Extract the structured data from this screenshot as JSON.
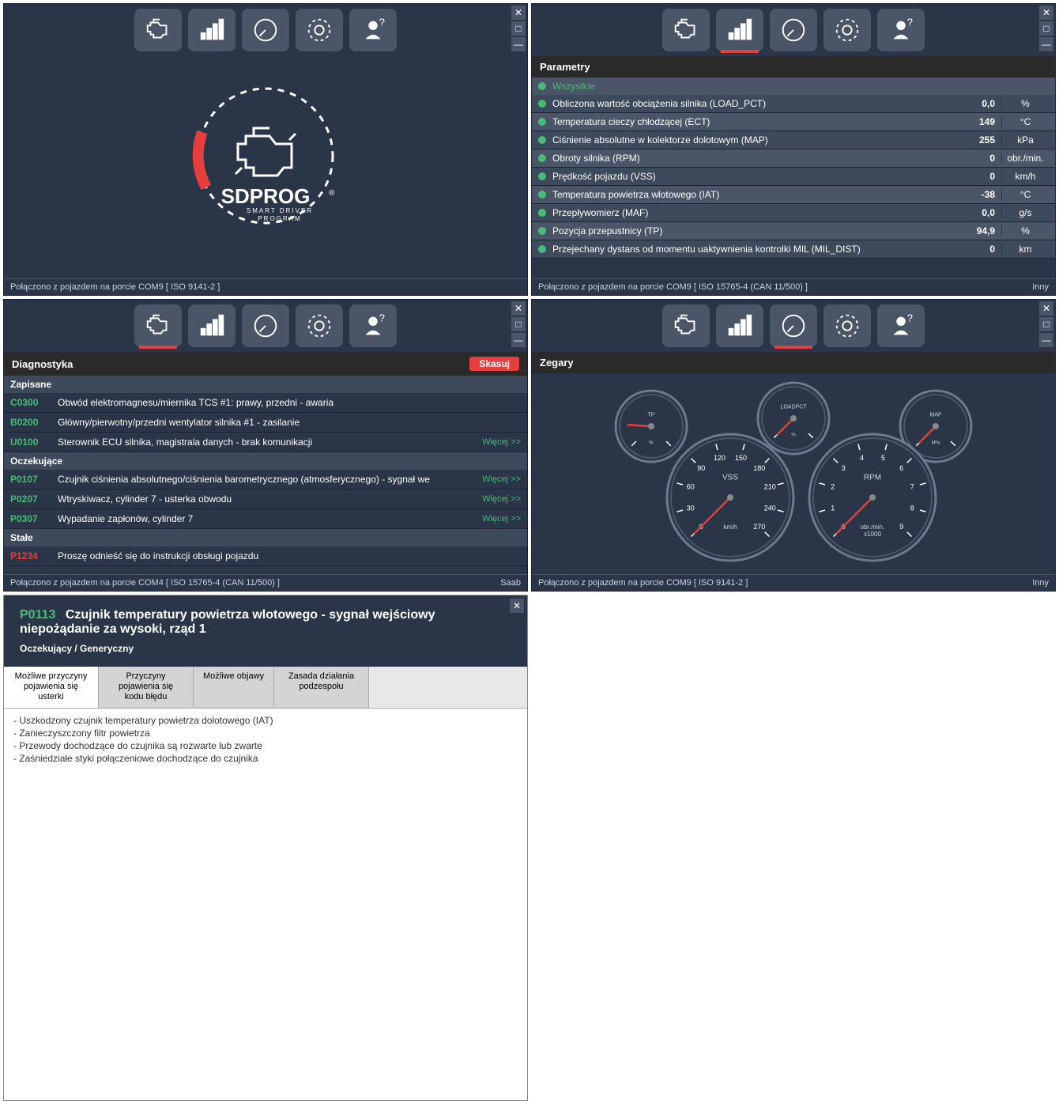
{
  "windows": {
    "home": {
      "status_left": "Połączono z pojazdem na porcie COM9  [ ISO 9141-2 ]",
      "status_right": "",
      "logo_title": "SDPROG",
      "logo_sub": "SMART DRIVER PROGRAM",
      "logo_color_accent": "#e53e3e",
      "logo_color_fg": "#ffffff"
    },
    "params": {
      "header": "Parametry",
      "all_label": "Wszystkie",
      "rows": [
        {
          "name": "Obliczona wartość obciążenia silnika (LOAD_PCT)",
          "val": "0,0",
          "unit": "%"
        },
        {
          "name": "Temperatura cieczy chłodzącej (ECT)",
          "val": "149",
          "unit": "°C"
        },
        {
          "name": "Ciśnienie absolutne w kolektorze dolotowym (MAP)",
          "val": "255",
          "unit": "kPa"
        },
        {
          "name": "Obroty silnika (RPM)",
          "val": "0",
          "unit": "obr./min."
        },
        {
          "name": "Prędkość pojazdu (VSS)",
          "val": "0",
          "unit": "km/h"
        },
        {
          "name": "Temperatura powietrza wlotowego (IAT)",
          "val": "-38",
          "unit": "°C"
        },
        {
          "name": "Przepływomierz (MAF)",
          "val": "0,0",
          "unit": "g/s"
        },
        {
          "name": "Pozycja przepustnicy (TP)",
          "val": "94,9",
          "unit": "%"
        },
        {
          "name": "Przejechany dystans od momentu uaktywnienia kontrolki MIL (MIL_DIST)",
          "val": "0",
          "unit": "km"
        }
      ],
      "status_left": "Połączono z pojazdem na porcie COM9  [ ISO 15765-4 (CAN 11/500) ]",
      "status_right": "Inny"
    },
    "diag": {
      "header": "Diagnostyka",
      "scan_btn": "Skasuj",
      "cat_saved": "Zapisane",
      "cat_pending": "Oczekujące",
      "cat_const": "Stałe",
      "more": "Więcej >>",
      "saved": [
        {
          "code": "C0300",
          "desc": "Obwód elektromagnesu/miernika TCS #1: prawy, przedni - awaria",
          "more": false,
          "err": false
        },
        {
          "code": "B0200",
          "desc": "Główny/pierwotny/przedni wentylator silnika #1 - zasilanie",
          "more": false,
          "err": false
        },
        {
          "code": "U0100",
          "desc": "Sterownik ECU silnika, magistrala danych - brak komunikacji",
          "more": true,
          "err": false
        }
      ],
      "pending": [
        {
          "code": "P0107",
          "desc": "Czujnik ciśnienia absolutnego/ciśnienia barometrycznego (atmosferycznego) - sygnał we",
          "more": true,
          "err": false
        },
        {
          "code": "P0207",
          "desc": "Wtryskiwacz, cylinder 7 - usterka obwodu",
          "more": true,
          "err": false
        },
        {
          "code": "P0307",
          "desc": "Wypadanie zapłonów, cylinder 7",
          "more": true,
          "err": false
        }
      ],
      "constv": [
        {
          "code": "P1234",
          "desc": "Proszę odnieść się do instrukcji obsługi pojazdu",
          "more": false,
          "err": true
        }
      ],
      "status_left": "Połączono z pojazdem na porcie COM4  [ ISO 15765-4 (CAN 11/500) ]",
      "status_right": "Saab"
    },
    "gauges": {
      "header": "Zegary",
      "status_left": "Połączono z pojazdem na porcie COM9  [ ISO 9141-2 ]",
      "status_right": "Inny",
      "items": [
        {
          "label": "TP",
          "unit": "%",
          "min": 0,
          "max": 100,
          "value": 18,
          "size": "small"
        },
        {
          "label": "LOADPCT",
          "unit": "%",
          "min": 0,
          "max": 100,
          "value": 0,
          "size": "small"
        },
        {
          "label": "MAP",
          "unit": "kPa",
          "min": 0,
          "max": 255,
          "value": 0,
          "size": "small"
        },
        {
          "label": "VSS",
          "unit": "km/h",
          "min": 0,
          "max": 270,
          "value": 0,
          "size": "large",
          "ticks": [
            0,
            30,
            60,
            90,
            120,
            150,
            180,
            210,
            240,
            270
          ]
        },
        {
          "label": "RPM",
          "unit": "obr./min.\nx1000",
          "min": 0,
          "max": 9,
          "value": 0,
          "size": "large",
          "ticks": [
            0,
            1,
            2,
            3,
            4,
            5,
            6,
            7,
            8,
            9
          ]
        }
      ],
      "needle_color": "#e53e3e",
      "dial_bg": "#2a3547",
      "dial_ring": "#cbd5e0",
      "tick_color": "#ffffff",
      "label_color": "#cbd5e0"
    },
    "detail": {
      "code": "P0113",
      "title": "Czujnik temperatury powietrza wlotowego - sygnał wejściowy niepożądanie za wysoki, rząd 1",
      "subtitle": "Oczekujący / Generyczny",
      "tabs": [
        "Możliwe przyczyny pojawienia się usterki",
        "Przyczyny pojawienia się kodu błędu",
        "Możliwe objawy",
        "Zasada działania podzespołu"
      ],
      "active_tab": 0,
      "body": [
        "- Uszkodzony czujnik temperatury powietrza dolotowego (IAT)",
        "- Zanieczyszczony filtr powietrza",
        "- Przewody dochodzące do czujnika są rozwarte lub zwarte",
        "- Zaśniedziałe styki połączeniowe dochodzące do czujnika"
      ]
    }
  },
  "colors": {
    "bg": "#2a3547",
    "panel": "#4a5568",
    "accent": "#e53e3e",
    "ok": "#48bb78",
    "text": "#ffffff",
    "muted": "#cbd5e0"
  }
}
